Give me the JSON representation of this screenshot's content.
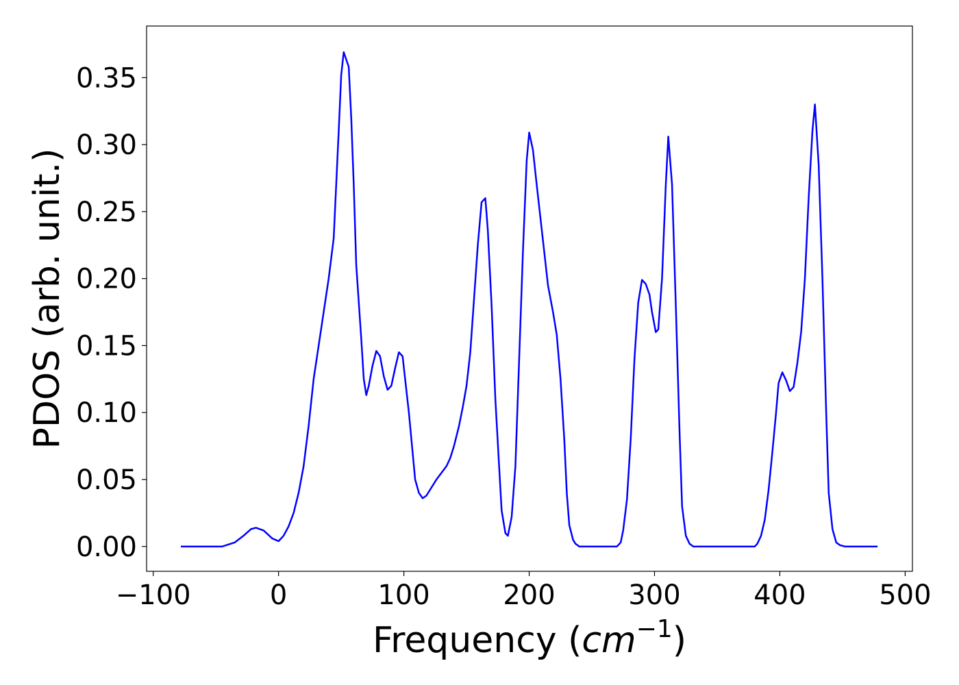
{
  "chart_data": {
    "type": "line",
    "ylabel": "PDOS (arb. unit.)",
    "xlabel": [
      "Frequency (",
      "cm",
      "−1",
      ")"
    ],
    "color": "#0000ff",
    "x": [
      -78,
      -45,
      -35,
      -28,
      -22,
      -18,
      -12,
      -5,
      0,
      4,
      8,
      12,
      16,
      20,
      24,
      28,
      32,
      36,
      40,
      44,
      48,
      50,
      52,
      56,
      58,
      60,
      62,
      66,
      68,
      70,
      72,
      75,
      78,
      81,
      84,
      87,
      90,
      93,
      96,
      99,
      101,
      104,
      107,
      109,
      112,
      115,
      118,
      122,
      126,
      130,
      134,
      137,
      140,
      144,
      147,
      150,
      153,
      156,
      159,
      162,
      165,
      167,
      170,
      173,
      176,
      178,
      181,
      183,
      186,
      189,
      192,
      195,
      198,
      200,
      203,
      206,
      209,
      212,
      215,
      219,
      222,
      225,
      228,
      230,
      232,
      235,
      237,
      240,
      270,
      273,
      275,
      278,
      281,
      284,
      287,
      290,
      293,
      296,
      298,
      301,
      303,
      306,
      309,
      311,
      314,
      317,
      320,
      322,
      325,
      328,
      331,
      380,
      382,
      385,
      388,
      391,
      394,
      397,
      399,
      402,
      405,
      408,
      411,
      414,
      417,
      420,
      423,
      426,
      428,
      431,
      434,
      437,
      439,
      442,
      445,
      448,
      452,
      478
    ],
    "values": [
      0,
      0,
      0.003,
      0.008,
      0.013,
      0.014,
      0.012,
      0.006,
      0.004,
      0.008,
      0.015,
      0.025,
      0.04,
      0.06,
      0.09,
      0.125,
      0.15,
      0.175,
      0.2,
      0.23,
      0.31,
      0.352,
      0.369,
      0.358,
      0.32,
      0.27,
      0.21,
      0.155,
      0.125,
      0.113,
      0.12,
      0.135,
      0.146,
      0.142,
      0.127,
      0.117,
      0.12,
      0.133,
      0.145,
      0.142,
      0.125,
      0.1,
      0.07,
      0.05,
      0.04,
      0.036,
      0.038,
      0.044,
      0.05,
      0.055,
      0.06,
      0.066,
      0.075,
      0.09,
      0.104,
      0.12,
      0.145,
      0.185,
      0.225,
      0.257,
      0.26,
      0.236,
      0.18,
      0.11,
      0.06,
      0.027,
      0.01,
      0.008,
      0.022,
      0.06,
      0.14,
      0.22,
      0.288,
      0.309,
      0.296,
      0.27,
      0.245,
      0.22,
      0.195,
      0.175,
      0.158,
      0.125,
      0.08,
      0.04,
      0.016,
      0.005,
      0.002,
      0,
      0,
      0.003,
      0.012,
      0.035,
      0.08,
      0.14,
      0.182,
      0.199,
      0.196,
      0.188,
      0.175,
      0.16,
      0.162,
      0.2,
      0.27,
      0.306,
      0.27,
      0.18,
      0.085,
      0.03,
      0.008,
      0.002,
      0,
      0,
      0.002,
      0.008,
      0.02,
      0.042,
      0.07,
      0.1,
      0.122,
      0.13,
      0.124,
      0.116,
      0.119,
      0.137,
      0.16,
      0.2,
      0.26,
      0.31,
      0.33,
      0.285,
      0.2,
      0.1,
      0.04,
      0.013,
      0.003,
      0.001,
      0,
      0
    ],
    "xlim": [
      -105.3,
      505.8
    ],
    "ylim": [
      -0.0185,
      0.3885
    ],
    "xticks": [
      {
        "value": -100,
        "label": "−100"
      },
      0,
      100,
      200,
      300,
      400,
      500
    ],
    "yticks": [
      {
        "value": 0,
        "label": "0.00"
      },
      {
        "value": 0.05,
        "label": "0.05"
      },
      {
        "value": 0.1,
        "label": "0.10"
      },
      {
        "value": 0.15,
        "label": "0.15"
      },
      {
        "value": 0.2,
        "label": "0.20"
      },
      {
        "value": 0.25,
        "label": "0.25"
      },
      {
        "value": 0.3,
        "label": "0.30"
      },
      {
        "value": 0.35,
        "label": "0.35"
      }
    ]
  }
}
